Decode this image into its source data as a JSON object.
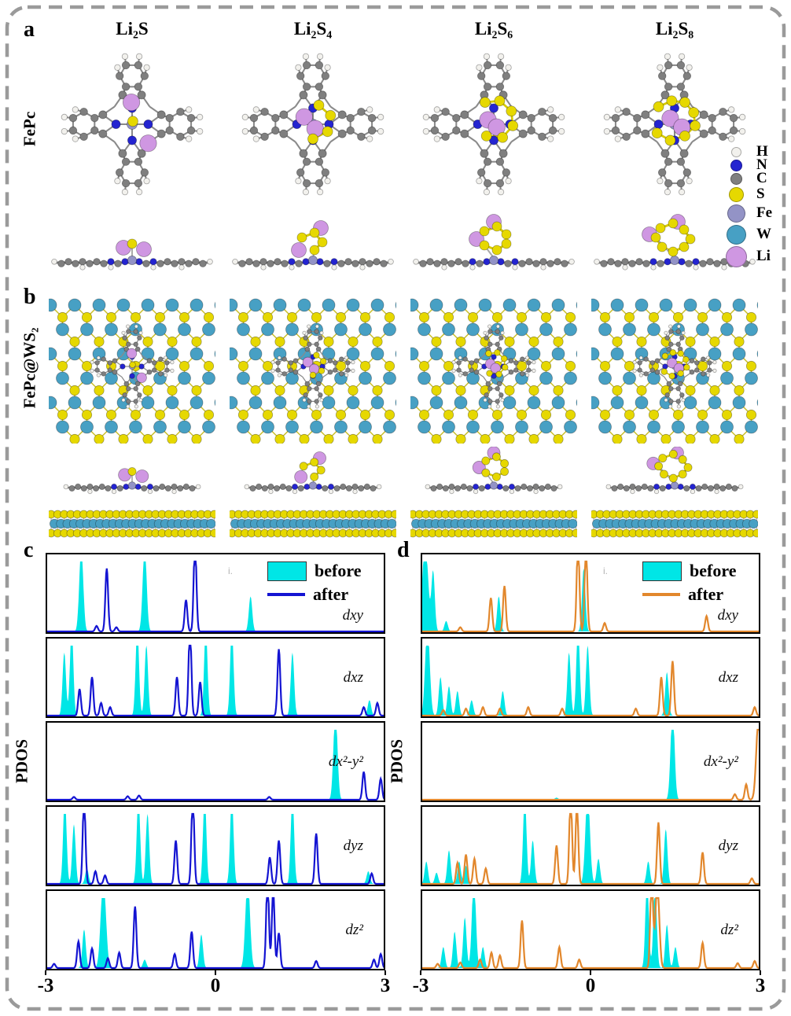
{
  "figure": {
    "panels": {
      "a": "a",
      "b": "b",
      "c": "c",
      "d": "d"
    },
    "columns": [
      "Li₂S",
      "Li₂S₄",
      "Li₂S₆",
      "Li₂S₈"
    ],
    "row_labels": {
      "a": "FePc",
      "b": "FePc@WS₂"
    },
    "species_s_counts": [
      1,
      4,
      6,
      8
    ]
  },
  "atom_legend": [
    {
      "symbol": "H",
      "color": "#f2f1ed",
      "r": 5.5
    },
    {
      "symbol": "N",
      "color": "#2424d0",
      "r": 6.5
    },
    {
      "symbol": "C",
      "color": "#7f7f7f",
      "r": 6.5
    },
    {
      "symbol": "S",
      "color": "#e6d800",
      "r": 8.5
    },
    {
      "symbol": "Fe",
      "color": "#9393c6",
      "r": 10.5
    },
    {
      "symbol": "W",
      "color": "#47a0c4",
      "r": 11.5
    },
    {
      "symbol": "Li",
      "color": "#cf97e2",
      "r": 12.5
    }
  ],
  "chart_data": [
    {
      "id": "c",
      "type": "area",
      "title": "",
      "xlabel": "",
      "ylabel": "PDOS",
      "xlim": [
        -3,
        3
      ],
      "xticks": [
        "-3",
        "0",
        "3"
      ],
      "grid": false,
      "legend_position": "top-right-first-subplot",
      "legend": [
        {
          "label": "before",
          "color": "#00e6e6",
          "style": "fill"
        },
        {
          "label": "after",
          "color": "#1414d2",
          "style": "line"
        }
      ],
      "artifact": "i.",
      "rows": [
        {
          "orbital": "dxy",
          "before": [
            [
              -2.37,
              1.2,
              0.035
            ],
            [
              -1.25,
              1.2,
              0.035
            ],
            [
              0.62,
              0.5
            ]
          ],
          "after": [
            [
              -2.1,
              0.08
            ],
            [
              -1.92,
              0.9
            ],
            [
              -1.75,
              0.06
            ],
            [
              -0.52,
              0.45
            ],
            [
              -0.36,
              1.3
            ]
          ]
        },
        {
          "orbital": "dxz",
          "before": [
            [
              -2.67,
              0.9
            ],
            [
              -2.54,
              1.25
            ],
            [
              -1.38,
              1.25
            ],
            [
              -1.22,
              1.0
            ],
            [
              -0.17,
              1.25
            ],
            [
              0.29,
              1.25
            ],
            [
              1.36,
              0.9
            ],
            [
              2.72,
              0.22
            ]
          ],
          "after": [
            [
              -2.4,
              0.38
            ],
            [
              -2.18,
              0.55
            ],
            [
              -2.02,
              0.18
            ],
            [
              -1.86,
              0.12
            ],
            [
              -0.68,
              0.55
            ],
            [
              -0.45,
              1.3
            ],
            [
              -0.27,
              0.48
            ],
            [
              1.12,
              0.95
            ],
            [
              2.62,
              0.12
            ],
            [
              2.86,
              0.18
            ]
          ]
        },
        {
          "orbital": "dx²-y²",
          "before": [
            [
              2.12,
              1.3,
              0.035
            ]
          ],
          "after": [
            [
              -2.5,
              0.04
            ],
            [
              -1.55,
              0.05
            ],
            [
              -1.35,
              0.06
            ],
            [
              0.95,
              0.04
            ],
            [
              2.62,
              0.4
            ],
            [
              2.92,
              0.3
            ]
          ]
        },
        {
          "orbital": "dyz",
          "before": [
            [
              -2.66,
              1.25
            ],
            [
              -2.5,
              0.85
            ],
            [
              -2.27,
              0.22
            ],
            [
              -1.36,
              1.25
            ],
            [
              -1.2,
              1.0
            ],
            [
              -0.19,
              1.25
            ],
            [
              0.29,
              1.25
            ],
            [
              1.36,
              1.25
            ],
            [
              2.7,
              0.18
            ]
          ],
          "after": [
            [
              -2.32,
              1.25
            ],
            [
              -2.12,
              0.18
            ],
            [
              -1.95,
              0.12
            ],
            [
              -0.7,
              0.62
            ],
            [
              -0.4,
              1.3
            ],
            [
              0.96,
              0.38
            ],
            [
              1.12,
              0.62
            ],
            [
              1.78,
              0.72
            ],
            [
              2.76,
              0.15
            ]
          ]
        },
        {
          "orbital": "dz²",
          "before": [
            [
              -2.32,
              0.55
            ],
            [
              -1.98,
              1.3,
              0.045
            ],
            [
              -1.25,
              0.12
            ],
            [
              -0.25,
              0.48
            ],
            [
              0.57,
              1.3,
              0.04
            ]
          ],
          "after": [
            [
              -2.85,
              0.06
            ],
            [
              -2.42,
              0.38
            ],
            [
              -2.18,
              0.28
            ],
            [
              -1.9,
              0.14
            ],
            [
              -1.7,
              0.22
            ],
            [
              -1.42,
              0.88
            ],
            [
              -0.72,
              0.2
            ],
            [
              -0.42,
              0.52
            ],
            [
              0.92,
              1.3
            ],
            [
              1.02,
              1.1
            ],
            [
              1.12,
              0.5
            ],
            [
              1.78,
              0.1
            ],
            [
              2.8,
              0.12
            ],
            [
              2.92,
              0.2
            ]
          ]
        }
      ]
    },
    {
      "id": "d",
      "type": "area",
      "title": "",
      "xlabel": "",
      "ylabel": "PDOS",
      "xlim": [
        -3,
        3
      ],
      "xticks": [
        "-3",
        "0",
        "3"
      ],
      "grid": false,
      "legend_position": "top-right-first-subplot",
      "legend": [
        {
          "label": "before",
          "color": "#00e6e6",
          "style": "fill"
        },
        {
          "label": "after",
          "color": "#e2872c",
          "style": "line"
        }
      ],
      "artifact": "i.",
      "rows": [
        {
          "orbital": "dxy",
          "before": [
            [
              -2.92,
              1.3,
              0.05
            ],
            [
              -2.78,
              0.85
            ],
            [
              -2.55,
              0.15
            ],
            [
              -1.62,
              0.5
            ],
            [
              -0.12,
              0.9
            ]
          ],
          "after": [
            [
              -2.3,
              0.06
            ],
            [
              -1.76,
              0.48
            ],
            [
              -1.52,
              0.65
            ],
            [
              -0.22,
              1.3
            ],
            [
              -0.08,
              1.2
            ],
            [
              0.25,
              0.12
            ],
            [
              2.05,
              0.22
            ]
          ]
        },
        {
          "orbital": "dxz",
          "before": [
            [
              -2.88,
              1.3,
              0.04
            ],
            [
              -2.65,
              0.55
            ],
            [
              -2.5,
              0.42
            ],
            [
              -2.35,
              0.35
            ],
            [
              -2.1,
              0.22
            ],
            [
              -1.55,
              0.35
            ],
            [
              -0.38,
              0.9
            ],
            [
              -0.22,
              1.3
            ],
            [
              -0.05,
              1.0
            ],
            [
              1.35,
              0.62
            ]
          ],
          "after": [
            [
              -2.6,
              0.08
            ],
            [
              -2.2,
              0.1
            ],
            [
              -1.9,
              0.12
            ],
            [
              -1.6,
              0.1
            ],
            [
              -1.1,
              0.12
            ],
            [
              -0.5,
              0.1
            ],
            [
              0.8,
              0.1
            ],
            [
              1.25,
              0.55
            ],
            [
              1.45,
              0.78
            ],
            [
              2.9,
              0.12
            ]
          ]
        },
        {
          "orbital": "dx²-y²",
          "before": [
            [
              -0.6,
              0.03
            ],
            [
              1.45,
              1.3,
              0.035
            ]
          ],
          "after": [
            [
              2.55,
              0.08
            ],
            [
              2.75,
              0.22
            ],
            [
              2.97,
              1.2,
              0.04
            ]
          ]
        },
        {
          "orbital": "dyz",
          "before": [
            [
              -2.9,
              0.32
            ],
            [
              -2.72,
              0.16
            ],
            [
              -2.5,
              0.48
            ],
            [
              -2.32,
              0.32
            ],
            [
              -2.2,
              0.26
            ],
            [
              -1.16,
              1.25
            ],
            [
              -1.02,
              0.62
            ],
            [
              -0.05,
              1.3,
              0.04
            ],
            [
              0.14,
              0.36
            ],
            [
              1.02,
              0.32
            ],
            [
              1.33,
              0.78
            ]
          ],
          "after": [
            [
              -2.35,
              0.3
            ],
            [
              -2.2,
              0.42
            ],
            [
              -2.05,
              0.36
            ],
            [
              -1.85,
              0.22
            ],
            [
              -0.6,
              0.55
            ],
            [
              -0.35,
              1.3
            ],
            [
              -0.24,
              1.15
            ],
            [
              1.2,
              0.88
            ],
            [
              1.98,
              0.45
            ],
            [
              2.85,
              0.08
            ]
          ]
        },
        {
          "orbital": "dz²",
          "before": [
            [
              -2.6,
              0.3
            ],
            [
              -2.4,
              0.52
            ],
            [
              -2.22,
              0.72
            ],
            [
              -2.06,
              1.3,
              0.035
            ],
            [
              -1.9,
              0.3
            ],
            [
              1.0,
              1.3
            ],
            [
              1.14,
              1.2
            ],
            [
              1.35,
              0.62
            ],
            [
              1.5,
              0.3
            ]
          ],
          "after": [
            [
              -2.7,
              0.06
            ],
            [
              -2.3,
              0.08
            ],
            [
              -1.95,
              0.12
            ],
            [
              -1.75,
              0.22
            ],
            [
              -1.6,
              0.18
            ],
            [
              -1.21,
              0.68
            ],
            [
              -0.55,
              0.3
            ],
            [
              -0.2,
              0.12
            ],
            [
              1.08,
              1.3
            ],
            [
              1.18,
              1.2,
              0.035
            ],
            [
              1.98,
              0.36
            ],
            [
              2.6,
              0.07
            ],
            [
              2.9,
              0.1
            ]
          ]
        }
      ]
    }
  ]
}
